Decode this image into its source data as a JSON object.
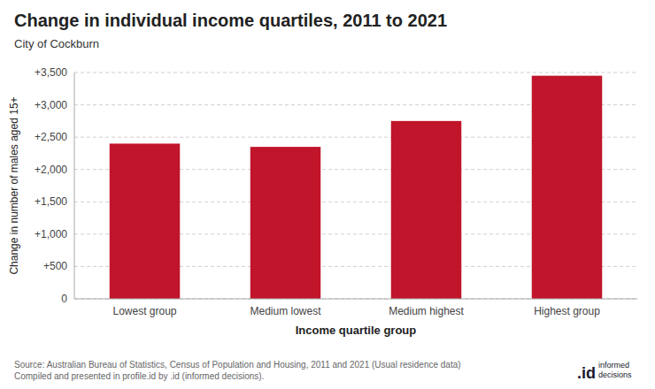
{
  "chart_data": {
    "type": "bar",
    "title": "Change in individual income quartiles, 2011 to 2021",
    "subtitle": "City of Cockburn",
    "categories": [
      "Lowest group",
      "Medium lowest",
      "Medium highest",
      "Highest group"
    ],
    "values": [
      2400,
      2350,
      2750,
      3450
    ],
    "color": "#C0152B",
    "x_label": "Income quartile group",
    "y_label": "Change in number of males aged 15+",
    "ylim": [
      0,
      3500
    ],
    "yticks": [
      0,
      {
        "value": 500,
        "label": "+500"
      },
      {
        "value": 1000,
        "label": "+1,000"
      },
      {
        "value": 1500,
        "label": "+1,500"
      },
      {
        "value": 2000,
        "label": "+2,000"
      },
      {
        "value": 2500,
        "label": "+2,500"
      },
      {
        "value": 3000,
        "label": "+3,000"
      },
      {
        "value": 3500,
        "label": "+3,500"
      }
    ],
    "grid": true,
    "source": "Source: Australian Bureau of Statistics, Census of Population and Housing, 2011 and 2021 (Usual residence data)\nCompiled and presented in profile.id by .id (informed decisions).",
    "annotations": [
      ".id",
      "informed",
      "decisions"
    ]
  }
}
